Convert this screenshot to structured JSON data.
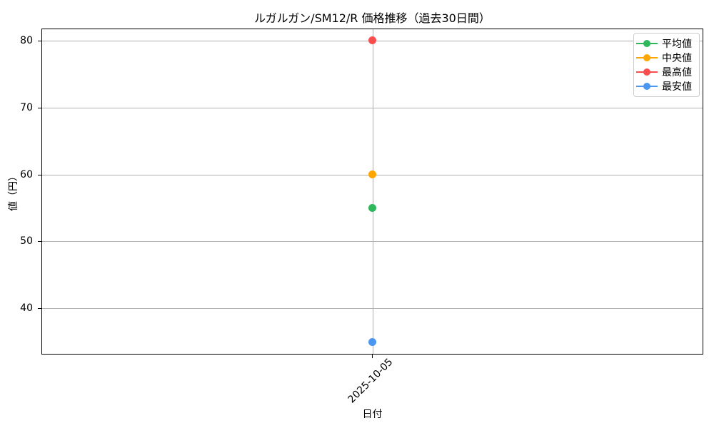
{
  "figure": {
    "background": "#ffffff",
    "grid_color": "#b0b0b0",
    "spine_color": "#000000",
    "text_color": "#000000"
  },
  "chart_data": {
    "type": "line",
    "title": "ルガルガン/SM12/R 価格推移（過去30日間）",
    "xlabel": "日付",
    "ylabel": "値（円）",
    "x": [
      "2025-10-05"
    ],
    "series": [
      {
        "key": "average",
        "name": "平均値",
        "color": "#2eb85c",
        "values": [
          55
        ]
      },
      {
        "key": "median",
        "name": "中央値",
        "color": "#ffa500",
        "values": [
          60
        ]
      },
      {
        "key": "max",
        "name": "最高値",
        "color": "#fa4d4d",
        "values": [
          80
        ]
      },
      {
        "key": "min",
        "name": "最安値",
        "color": "#4a97f2",
        "values": [
          35
        ]
      }
    ],
    "yticks": [
      40,
      50,
      60,
      70,
      80
    ],
    "ylim": [
      33.1,
      81.8
    ],
    "grid": true,
    "legend_position": "upper right"
  }
}
